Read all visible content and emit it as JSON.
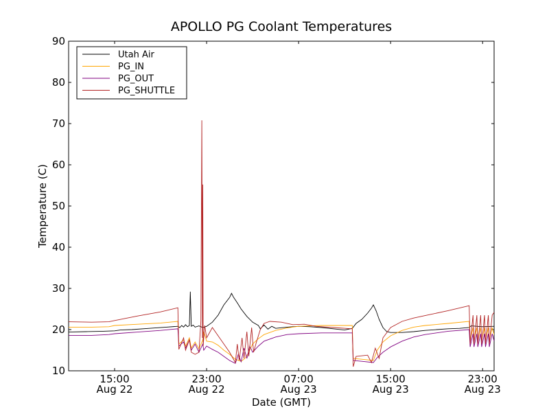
{
  "chart_data": {
    "type": "line",
    "title": "APOLLO PG Coolant Temperatures",
    "xlabel": "Date (GMT)",
    "ylabel": "Temperature (C)",
    "xlim": [
      "2011-08-22 11:00",
      "2011-08-24 00:00"
    ],
    "ylim": [
      10,
      90
    ],
    "yticks": [
      10,
      20,
      30,
      40,
      50,
      60,
      70,
      80,
      90
    ],
    "xticks": [
      {
        "t": "2011-08-22 15:00",
        "label1": "15:00",
        "label2": "Aug 22"
      },
      {
        "t": "2011-08-22 23:00",
        "label1": "23:00",
        "label2": "Aug 22"
      },
      {
        "t": "2011-08-23 07:00",
        "label1": "07:00",
        "label2": "Aug 23"
      },
      {
        "t": "2011-08-23 15:00",
        "label1": "15:00",
        "label2": "Aug 23"
      },
      {
        "t": "2011-08-23 23:00",
        "label1": "23:00",
        "label2": "Aug 23"
      }
    ],
    "grid": false,
    "legend_position": "top-left",
    "series": [
      {
        "name": "Utah Air",
        "color": "#000000",
        "points": [
          [
            "2011-08-22 11:00",
            19.4
          ],
          [
            "2011-08-22 12:30",
            19.5
          ],
          [
            "2011-08-22 14:00",
            19.6
          ],
          [
            "2011-08-22 15:00",
            19.7
          ],
          [
            "2011-08-22 15:30",
            19.9
          ],
          [
            "2011-08-22 16:30",
            20.0
          ],
          [
            "2011-08-22 18:00",
            20.3
          ],
          [
            "2011-08-22 19:30",
            20.6
          ],
          [
            "2011-08-22 20:30",
            20.8
          ],
          [
            "2011-08-22 20:40",
            20.5
          ],
          [
            "2011-08-22 20:50",
            21.0
          ],
          [
            "2011-08-22 21:00",
            20.6
          ],
          [
            "2011-08-22 21:10",
            21.2
          ],
          [
            "2011-08-22 21:20",
            20.7
          ],
          [
            "2011-08-22 21:30",
            21.0
          ],
          [
            "2011-08-22 21:35",
            29.2
          ],
          [
            "2011-08-22 21:40",
            20.8
          ],
          [
            "2011-08-22 21:50",
            21.1
          ],
          [
            "2011-08-22 22:00",
            20.6
          ],
          [
            "2011-08-22 22:20",
            20.9
          ],
          [
            "2011-08-22 22:40",
            20.5
          ],
          [
            "2011-08-22 23:00",
            20.8
          ],
          [
            "2011-08-22 23:30",
            21.8
          ],
          [
            "2011-08-23 00:00",
            23.5
          ],
          [
            "2011-08-23 00:30",
            26.0
          ],
          [
            "2011-08-23 01:00",
            27.8
          ],
          [
            "2011-08-23 01:10",
            28.8
          ],
          [
            "2011-08-23 01:20",
            27.9
          ],
          [
            "2011-08-23 01:40",
            26.5
          ],
          [
            "2011-08-23 02:00",
            25.0
          ],
          [
            "2011-08-23 02:30",
            23.2
          ],
          [
            "2011-08-23 03:00",
            21.8
          ],
          [
            "2011-08-23 03:30",
            21.0
          ],
          [
            "2011-08-23 03:40",
            20.2
          ],
          [
            "2011-08-23 04:00",
            21.1
          ],
          [
            "2011-08-23 04:20",
            20.1
          ],
          [
            "2011-08-23 04:40",
            20.8
          ],
          [
            "2011-08-23 05:00",
            20.3
          ],
          [
            "2011-08-23 06:00",
            20.6
          ],
          [
            "2011-08-23 07:00",
            20.8
          ],
          [
            "2011-08-23 08:00",
            20.7
          ],
          [
            "2011-08-23 09:00",
            20.5
          ],
          [
            "2011-08-23 10:00",
            20.2
          ],
          [
            "2011-08-23 11:00",
            19.9
          ],
          [
            "2011-08-23 11:40",
            20.3
          ],
          [
            "2011-08-23 12:00",
            21.5
          ],
          [
            "2011-08-23 12:30",
            22.5
          ],
          [
            "2011-08-23 13:00",
            24.0
          ],
          [
            "2011-08-23 13:20",
            25.2
          ],
          [
            "2011-08-23 13:30",
            26.0
          ],
          [
            "2011-08-23 13:45",
            24.5
          ],
          [
            "2011-08-23 14:00",
            22.5
          ],
          [
            "2011-08-23 14:20",
            20.5
          ],
          [
            "2011-08-23 14:40",
            19.5
          ],
          [
            "2011-08-23 15:00",
            19.3
          ],
          [
            "2011-08-23 16:00",
            19.3
          ],
          [
            "2011-08-23 17:00",
            19.5
          ],
          [
            "2011-08-23 18:00",
            19.8
          ],
          [
            "2011-08-23 19:00",
            20.0
          ],
          [
            "2011-08-23 20:00",
            20.2
          ],
          [
            "2011-08-23 21:00",
            20.3
          ],
          [
            "2011-08-23 21:50",
            20.5
          ],
          [
            "2011-08-23 22:00",
            20.9
          ],
          [
            "2011-08-23 23:00",
            20.7
          ],
          [
            "2011-08-24 00:00",
            20.8
          ]
        ]
      },
      {
        "name": "PG_IN",
        "color": "#ffa500",
        "points": [
          [
            "2011-08-22 11:00",
            20.6
          ],
          [
            "2011-08-22 13:00",
            20.6
          ],
          [
            "2011-08-22 14:30",
            20.7
          ],
          [
            "2011-08-22 15:00",
            21.0
          ],
          [
            "2011-08-22 17:00",
            21.3
          ],
          [
            "2011-08-22 19:00",
            21.6
          ],
          [
            "2011-08-22 20:30",
            22.0
          ],
          [
            "2011-08-22 20:35",
            16.5
          ],
          [
            "2011-08-22 21:00",
            17.5
          ],
          [
            "2011-08-22 21:10",
            16.0
          ],
          [
            "2011-08-22 21:30",
            18.0
          ],
          [
            "2011-08-22 21:40",
            15.5
          ],
          [
            "2011-08-22 22:00",
            17.0
          ],
          [
            "2011-08-22 22:20",
            15.3
          ],
          [
            "2011-08-22 22:40",
            17.5
          ],
          [
            "2011-08-22 22:45",
            19.5
          ],
          [
            "2011-08-22 23:00",
            17.2
          ],
          [
            "2011-08-22 23:30",
            17.0
          ],
          [
            "2011-08-23 00:00",
            16.2
          ],
          [
            "2011-08-23 00:30",
            15.0
          ],
          [
            "2011-08-23 01:00",
            14.0
          ],
          [
            "2011-08-23 01:30",
            12.8
          ],
          [
            "2011-08-23 02:00",
            12.3
          ],
          [
            "2011-08-23 02:20",
            13.0
          ],
          [
            "2011-08-23 02:40",
            14.5
          ],
          [
            "2011-08-23 03:00",
            16.5
          ],
          [
            "2011-08-23 03:30",
            17.8
          ],
          [
            "2011-08-23 04:00",
            18.8
          ],
          [
            "2011-08-23 05:00",
            19.8
          ],
          [
            "2011-08-23 06:00",
            20.4
          ],
          [
            "2011-08-23 07:00",
            20.8
          ],
          [
            "2011-08-23 09:00",
            21.0
          ],
          [
            "2011-08-23 11:40",
            21.0
          ],
          [
            "2011-08-23 11:45",
            13.0
          ],
          [
            "2011-08-23 12:30",
            12.8
          ],
          [
            "2011-08-23 13:30",
            12.5
          ],
          [
            "2011-08-23 13:50",
            15.0
          ],
          [
            "2011-08-23 14:20",
            17.0
          ],
          [
            "2011-08-23 15:00",
            18.5
          ],
          [
            "2011-08-23 16:00",
            19.8
          ],
          [
            "2011-08-23 17:00",
            20.6
          ],
          [
            "2011-08-23 18:00",
            21.0
          ],
          [
            "2011-08-23 20:00",
            21.5
          ],
          [
            "2011-08-23 21:50",
            22.0
          ],
          [
            "2011-08-23 21:55",
            17.5
          ],
          [
            "2011-08-23 22:10",
            20.5
          ],
          [
            "2011-08-23 22:15",
            17.3
          ],
          [
            "2011-08-23 22:30",
            20.5
          ],
          [
            "2011-08-23 22:35",
            17.3
          ],
          [
            "2011-08-23 22:50",
            20.5
          ],
          [
            "2011-08-23 22:55",
            17.3
          ],
          [
            "2011-08-23 23:10",
            20.5
          ],
          [
            "2011-08-23 23:15",
            17.3
          ],
          [
            "2011-08-23 23:30",
            20.5
          ],
          [
            "2011-08-23 23:35",
            17.3
          ],
          [
            "2011-08-23 23:50",
            20.5
          ],
          [
            "2011-08-24 00:00",
            18.8
          ]
        ]
      },
      {
        "name": "PG_OUT",
        "color": "#800080",
        "points": [
          [
            "2011-08-22 11:00",
            18.6
          ],
          [
            "2011-08-22 13:00",
            18.6
          ],
          [
            "2011-08-22 14:30",
            18.8
          ],
          [
            "2011-08-22 15:00",
            19.0
          ],
          [
            "2011-08-22 17:00",
            19.4
          ],
          [
            "2011-08-22 19:00",
            19.8
          ],
          [
            "2011-08-22 20:30",
            20.2
          ],
          [
            "2011-08-22 20:35",
            16.0
          ],
          [
            "2011-08-22 21:00",
            17.0
          ],
          [
            "2011-08-22 21:10",
            15.5
          ],
          [
            "2011-08-22 21:30",
            17.5
          ],
          [
            "2011-08-22 21:40",
            15.0
          ],
          [
            "2011-08-22 22:00",
            16.5
          ],
          [
            "2011-08-22 22:20",
            14.5
          ],
          [
            "2011-08-22 22:40",
            16.5
          ],
          [
            "2011-08-22 22:45",
            15.0
          ],
          [
            "2011-08-22 23:00",
            16.0
          ],
          [
            "2011-08-22 23:30",
            15.2
          ],
          [
            "2011-08-23 00:00",
            14.5
          ],
          [
            "2011-08-23 00:30",
            13.5
          ],
          [
            "2011-08-23 01:00",
            12.5
          ],
          [
            "2011-08-23 01:30",
            11.8
          ],
          [
            "2011-08-23 01:45",
            14.0
          ],
          [
            "2011-08-23 02:00",
            12.2
          ],
          [
            "2011-08-23 02:15",
            15.5
          ],
          [
            "2011-08-23 02:30",
            13.0
          ],
          [
            "2011-08-23 02:45",
            16.0
          ],
          [
            "2011-08-23 03:00",
            14.5
          ],
          [
            "2011-08-23 03:30",
            16.0
          ],
          [
            "2011-08-23 04:00",
            17.2
          ],
          [
            "2011-08-23 05:00",
            18.2
          ],
          [
            "2011-08-23 06:00",
            18.8
          ],
          [
            "2011-08-23 07:00",
            19.0
          ],
          [
            "2011-08-23 09:00",
            19.2
          ],
          [
            "2011-08-23 11:40",
            19.2
          ],
          [
            "2011-08-23 11:45",
            12.5
          ],
          [
            "2011-08-23 12:30",
            12.3
          ],
          [
            "2011-08-23 13:30",
            12.0
          ],
          [
            "2011-08-23 13:50",
            13.2
          ],
          [
            "2011-08-23 14:20",
            14.5
          ],
          [
            "2011-08-23 15:00",
            15.8
          ],
          [
            "2011-08-23 16:00",
            17.2
          ],
          [
            "2011-08-23 17:00",
            18.2
          ],
          [
            "2011-08-23 18:00",
            18.8
          ],
          [
            "2011-08-23 20:00",
            19.6
          ],
          [
            "2011-08-23 21:50",
            20.0
          ],
          [
            "2011-08-23 21:55",
            15.8
          ],
          [
            "2011-08-23 22:10",
            19.0
          ],
          [
            "2011-08-23 22:15",
            15.8
          ],
          [
            "2011-08-23 22:30",
            19.0
          ],
          [
            "2011-08-23 22:35",
            15.8
          ],
          [
            "2011-08-23 22:50",
            19.0
          ],
          [
            "2011-08-23 22:55",
            15.8
          ],
          [
            "2011-08-23 23:10",
            19.0
          ],
          [
            "2011-08-23 23:15",
            15.8
          ],
          [
            "2011-08-23 23:30",
            19.0
          ],
          [
            "2011-08-23 23:35",
            15.8
          ],
          [
            "2011-08-23 23:50",
            19.0
          ],
          [
            "2011-08-24 00:00",
            17.2
          ]
        ]
      },
      {
        "name": "PG_SHUTTLE",
        "color": "#b22222",
        "points": [
          [
            "2011-08-22 11:00",
            21.9
          ],
          [
            "2011-08-22 13:00",
            21.8
          ],
          [
            "2011-08-22 14:30",
            21.9
          ],
          [
            "2011-08-22 15:00",
            22.2
          ],
          [
            "2011-08-22 17:00",
            23.3
          ],
          [
            "2011-08-22 19:00",
            24.3
          ],
          [
            "2011-08-22 20:30",
            25.3
          ],
          [
            "2011-08-22 20:35",
            15.2
          ],
          [
            "2011-08-22 21:00",
            18.0
          ],
          [
            "2011-08-22 21:10",
            15.0
          ],
          [
            "2011-08-22 21:30",
            17.5
          ],
          [
            "2011-08-22 21:40",
            14.5
          ],
          [
            "2011-08-22 22:00",
            14.0
          ],
          [
            "2011-08-22 22:20",
            14.5
          ],
          [
            "2011-08-22 22:30",
            22.0
          ],
          [
            "2011-08-22 22:35",
            70.8
          ],
          [
            "2011-08-22 22:38",
            18.0
          ],
          [
            "2011-08-22 22:40",
            55.2
          ],
          [
            "2011-08-22 22:42",
            16.0
          ],
          [
            "2011-08-22 22:50",
            21.0
          ],
          [
            "2011-08-22 23:00",
            18.0
          ],
          [
            "2011-08-22 23:30",
            20.5
          ],
          [
            "2011-08-23 00:00",
            18.5
          ],
          [
            "2011-08-23 00:30",
            16.5
          ],
          [
            "2011-08-23 01:00",
            14.5
          ],
          [
            "2011-08-23 01:30",
            12.0
          ],
          [
            "2011-08-23 01:40",
            16.5
          ],
          [
            "2011-08-23 01:50",
            12.5
          ],
          [
            "2011-08-23 02:05",
            18.0
          ],
          [
            "2011-08-23 02:15",
            13.0
          ],
          [
            "2011-08-23 02:30",
            19.5
          ],
          [
            "2011-08-23 02:40",
            13.5
          ],
          [
            "2011-08-23 02:55",
            20.5
          ],
          [
            "2011-08-23 03:05",
            14.5
          ],
          [
            "2011-08-23 03:20",
            17.0
          ],
          [
            "2011-08-23 03:40",
            20.0
          ],
          [
            "2011-08-23 04:00",
            21.5
          ],
          [
            "2011-08-23 04:30",
            22.0
          ],
          [
            "2011-08-23 05:30",
            21.8
          ],
          [
            "2011-08-23 06:30",
            21.2
          ],
          [
            "2011-08-23 07:30",
            21.3
          ],
          [
            "2011-08-23 08:30",
            20.8
          ],
          [
            "2011-08-23 10:00",
            20.5
          ],
          [
            "2011-08-23 11:40",
            20.2
          ],
          [
            "2011-08-23 11:45",
            11.0
          ],
          [
            "2011-08-23 12:00",
            13.5
          ],
          [
            "2011-08-23 13:00",
            13.8
          ],
          [
            "2011-08-23 13:20",
            12.0
          ],
          [
            "2011-08-23 13:40",
            15.5
          ],
          [
            "2011-08-23 14:00",
            13.0
          ],
          [
            "2011-08-23 14:20",
            18.0
          ],
          [
            "2011-08-23 15:00",
            20.5
          ],
          [
            "2011-08-23 16:00",
            22.0
          ],
          [
            "2011-08-23 17:00",
            22.8
          ],
          [
            "2011-08-23 18:00",
            23.4
          ],
          [
            "2011-08-23 20:00",
            24.6
          ],
          [
            "2011-08-23 21:50",
            25.8
          ],
          [
            "2011-08-23 21:55",
            16.5
          ],
          [
            "2011-08-23 22:10",
            23.5
          ],
          [
            "2011-08-23 22:15",
            16.5
          ],
          [
            "2011-08-23 22:30",
            23.5
          ],
          [
            "2011-08-23 22:35",
            16.5
          ],
          [
            "2011-08-23 22:50",
            23.5
          ],
          [
            "2011-08-23 22:55",
            16.5
          ],
          [
            "2011-08-23 23:10",
            23.5
          ],
          [
            "2011-08-23 23:15",
            16.5
          ],
          [
            "2011-08-23 23:30",
            23.5
          ],
          [
            "2011-08-23 23:35",
            16.5
          ],
          [
            "2011-08-23 23:50",
            23.5
          ],
          [
            "2011-08-24 00:00",
            24.2
          ]
        ]
      }
    ]
  }
}
